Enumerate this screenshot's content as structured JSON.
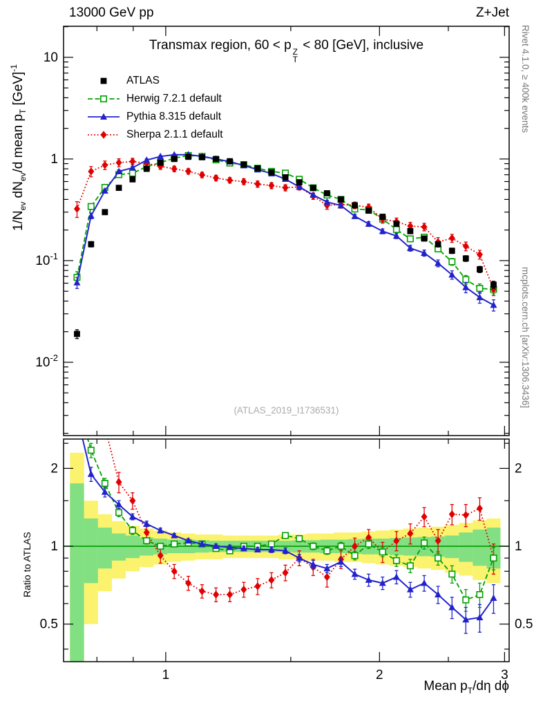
{
  "header": {
    "left": "13000 GeV pp",
    "right": "Z+Jet"
  },
  "side_notes": {
    "right_top": "Rivet 4.1.0, ≥ 400k events",
    "right_bottom": "mcplots.cern.ch [arXiv:1306.3436]"
  },
  "chart_data": {
    "type": "line",
    "title": {
      "pre": "Transmax region, 60 < p",
      "stack_sup": "Z",
      "stack_sub": "T",
      "post": " < 80 [GeV], inclusive"
    },
    "watermark": "(ATLAS_2019_I1736531)",
    "xlabel": {
      "pre": "Mean p",
      "sub": "T",
      "post": "/dη dϕ"
    },
    "ylabel_top": [
      {
        "t": "1/N"
      },
      {
        "t": "ev",
        "s": "sub"
      },
      {
        "t": " dN"
      },
      {
        "t": "ev",
        "s": "sub"
      },
      {
        "t": "/d mean p"
      },
      {
        "t": "T",
        "s": "sub"
      },
      {
        "t": " [GeV]"
      },
      {
        "t": "-1",
        "s": "sup"
      }
    ],
    "ylabel_ratio": "Ratio to ATLAS",
    "axes": {
      "x_log": true,
      "x_range": [
        0.718,
        3.045
      ],
      "x_major": [
        {
          "v": 1,
          "label": "1"
        },
        {
          "v": 2,
          "label": "2"
        },
        {
          "v": 3,
          "label": "3"
        }
      ],
      "x_minor": [
        0.8,
        0.9,
        1.5,
        2.5
      ],
      "y_top_log": true,
      "y_top_range": [
        0.0019,
        20.2
      ],
      "y_top_major": [
        {
          "v": 10,
          "label": "10"
        },
        {
          "v": 1,
          "label": "1"
        },
        {
          "v": 0.1,
          "base": "10",
          "exp": "-1"
        },
        {
          "v": 0.01,
          "base": "10",
          "exp": "-2"
        }
      ],
      "y_ratio_log": true,
      "y_ratio_range": [
        0.3577,
        2.597
      ],
      "y_ratio_major": [
        {
          "v": 2,
          "label": "2"
        },
        {
          "v": 1,
          "label": "1"
        },
        {
          "v": 0.5,
          "label": "0.5"
        }
      ],
      "y_ratio_minor": [
        0.4,
        0.6,
        0.7,
        0.8,
        0.9,
        1.5,
        2.5
      ]
    },
    "x": [
      0.75,
      0.785,
      0.821,
      0.859,
      0.898,
      0.94,
      0.983,
      1.028,
      1.076,
      1.125,
      1.177,
      1.231,
      1.288,
      1.347,
      1.409,
      1.474,
      1.542,
      1.613,
      1.687,
      1.765,
      1.846,
      1.931,
      2.02,
      2.113,
      2.21,
      2.312,
      2.418,
      2.53,
      2.646,
      2.768,
      2.895
    ],
    "series": [
      {
        "id": "atlas",
        "label": "ATLAS",
        "color": "#000000",
        "marker": "square-filled",
        "line": "none",
        "values": [
          0.019,
          0.145,
          0.3,
          0.52,
          0.63,
          0.8,
          0.92,
          1.0,
          1.05,
          1.04,
          1.0,
          0.95,
          0.88,
          0.81,
          0.74,
          0.66,
          0.59,
          0.52,
          0.46,
          0.4,
          0.35,
          0.31,
          0.27,
          0.23,
          0.195,
          0.165,
          0.145,
          0.125,
          0.105,
          0.082,
          0.058
        ],
        "err_rel": [
          0.1,
          0.06,
          0.05,
          0.04,
          0.035,
          0.03,
          0.03,
          0.03,
          0.03,
          0.03,
          0.03,
          0.03,
          0.03,
          0.03,
          0.03,
          0.03,
          0.035,
          0.035,
          0.04,
          0.04,
          0.04,
          0.045,
          0.045,
          0.05,
          0.05,
          0.055,
          0.06,
          0.06,
          0.065,
          0.07,
          0.08
        ]
      },
      {
        "id": "herwig",
        "label": "Herwig 7.2.1 default",
        "color": "#00a000",
        "marker": "square-open",
        "line": "dashed",
        "ratio": [
          3.6,
          2.35,
          1.75,
          1.35,
          1.15,
          1.05,
          1.0,
          1.02,
          1.03,
          1.02,
          0.98,
          0.96,
          1.0,
          1.0,
          1.02,
          1.1,
          1.07,
          1.0,
          0.96,
          1.0,
          0.92,
          1.02,
          0.95,
          0.88,
          0.84,
          1.03,
          0.9,
          0.78,
          0.62,
          0.65,
          0.9
        ],
        "ratio_err": [
          0.5,
          0.15,
          0.08,
          0.05,
          0.04,
          0.03,
          0.025,
          0.02,
          0.02,
          0.02,
          0.02,
          0.02,
          0.02,
          0.02,
          0.025,
          0.025,
          0.03,
          0.03,
          0.03,
          0.035,
          0.035,
          0.04,
          0.04,
          0.045,
          0.05,
          0.055,
          0.055,
          0.06,
          0.06,
          0.07,
          0.09
        ]
      },
      {
        "id": "pythia",
        "label": "Pythia 8.315 default",
        "color": "#2222cc",
        "marker": "triangle-filled",
        "line": "solid",
        "ratio": [
          3.2,
          1.9,
          1.62,
          1.45,
          1.3,
          1.22,
          1.15,
          1.1,
          1.05,
          1.02,
          1.0,
          0.99,
          0.98,
          0.97,
          0.97,
          0.96,
          0.9,
          0.85,
          0.82,
          0.87,
          0.78,
          0.74,
          0.72,
          0.76,
          0.68,
          0.72,
          0.65,
          0.58,
          0.52,
          0.53,
          0.63
        ],
        "ratio_err": [
          0.4,
          0.12,
          0.07,
          0.05,
          0.035,
          0.03,
          0.025,
          0.02,
          0.02,
          0.02,
          0.02,
          0.02,
          0.02,
          0.02,
          0.025,
          0.025,
          0.03,
          0.03,
          0.03,
          0.035,
          0.035,
          0.04,
          0.04,
          0.045,
          0.045,
          0.05,
          0.05,
          0.055,
          0.06,
          0.065,
          0.08
        ]
      },
      {
        "id": "sherpa",
        "label": "Sherpa 2.1.1 default",
        "color": "#e10000",
        "marker": "diamond-filled",
        "line": "dotted",
        "ratio": [
          17.0,
          5.2,
          2.9,
          1.77,
          1.5,
          1.13,
          0.92,
          0.8,
          0.72,
          0.67,
          0.65,
          0.65,
          0.68,
          0.7,
          0.74,
          0.79,
          0.9,
          0.83,
          0.76,
          0.89,
          1.0,
          1.08,
          0.95,
          1.05,
          1.12,
          1.3,
          1.05,
          1.33,
          1.32,
          1.4,
          0.9
        ],
        "ratio_err": [
          3.0,
          0.6,
          0.28,
          0.16,
          0.11,
          0.08,
          0.06,
          0.05,
          0.045,
          0.04,
          0.04,
          0.04,
          0.045,
          0.05,
          0.05,
          0.055,
          0.06,
          0.06,
          0.065,
          0.07,
          0.075,
          0.08,
          0.085,
          0.09,
          0.1,
          0.11,
          0.11,
          0.12,
          0.13,
          0.14,
          0.12
        ]
      }
    ],
    "bands": {
      "yellow_color": "#fbf26e",
      "green_color": "#82df82",
      "ref_line_color": "#009900",
      "yellow": [
        1.3,
        0.5,
        0.33,
        0.25,
        0.2,
        0.17,
        0.15,
        0.13,
        0.12,
        0.11,
        0.11,
        0.1,
        0.1,
        0.1,
        0.1,
        0.11,
        0.11,
        0.12,
        0.12,
        0.13,
        0.13,
        0.14,
        0.15,
        0.16,
        0.17,
        0.18,
        0.19,
        0.21,
        0.23,
        0.26,
        0.28
      ],
      "green": [
        0.75,
        0.28,
        0.18,
        0.12,
        0.1,
        0.08,
        0.07,
        0.06,
        0.06,
        0.055,
        0.05,
        0.05,
        0.05,
        0.05,
        0.05,
        0.05,
        0.055,
        0.055,
        0.06,
        0.06,
        0.065,
        0.07,
        0.07,
        0.075,
        0.08,
        0.085,
        0.09,
        0.1,
        0.13,
        0.16,
        0.18
      ]
    }
  }
}
